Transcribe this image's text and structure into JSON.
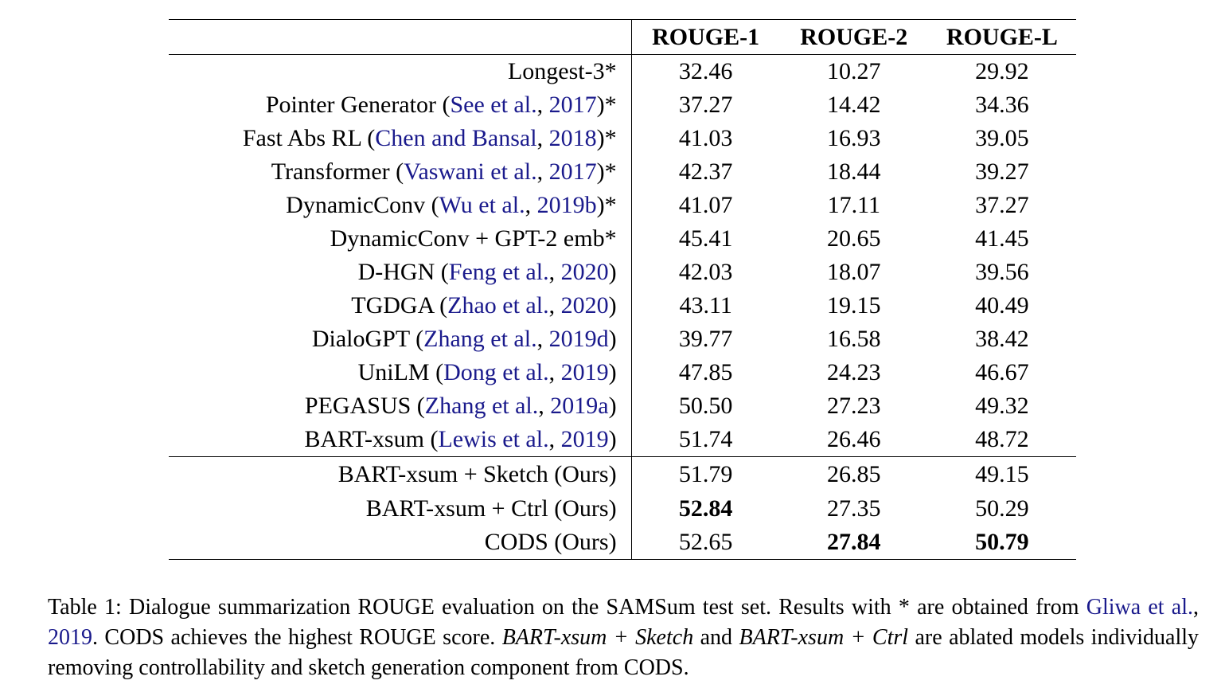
{
  "table": {
    "headers": [
      "",
      "ROUGE-1",
      "ROUGE-2",
      "ROUGE-L"
    ],
    "rows": [
      {
        "name": "Longest-3*",
        "cite": "",
        "pre": "",
        "post": "",
        "r1": "32.46",
        "r2": "10.27",
        "rl": "29.92"
      },
      {
        "name": "Pointer Generator",
        "pre": " (",
        "cite_a": "See et al.",
        "sep": ", ",
        "cite_b": "2017",
        "post": ")*",
        "r1": "37.27",
        "r2": "14.42",
        "rl": "34.36"
      },
      {
        "name": "Fast Abs RL",
        "pre": " (",
        "cite_a": "Chen and Bansal",
        "sep": ", ",
        "cite_b": "2018",
        "post": ")*",
        "r1": "41.03",
        "r2": "16.93",
        "rl": "39.05"
      },
      {
        "name": "Transformer",
        "pre": " (",
        "cite_a": "Vaswani et al.",
        "sep": ", ",
        "cite_b": "2017",
        "post": ")*",
        "r1": "42.37",
        "r2": "18.44",
        "rl": "39.27"
      },
      {
        "name": "DynamicConv",
        "pre": " (",
        "cite_a": "Wu et al.",
        "sep": ", ",
        "cite_b": "2019b",
        "post": ")*",
        "r1": "41.07",
        "r2": "17.11",
        "rl": "37.27"
      },
      {
        "name": "DynamicConv + GPT-2 emb*",
        "pre": "",
        "post": "",
        "r1": "45.41",
        "r2": "20.65",
        "rl": "41.45"
      },
      {
        "name": "D-HGN",
        "pre": " (",
        "cite_a": "Feng et al.",
        "sep": ", ",
        "cite_b": "2020",
        "post": ")",
        "r1": "42.03",
        "r2": "18.07",
        "rl": "39.56"
      },
      {
        "name": "TGDGA",
        "pre": " (",
        "cite_a": "Zhao et al.",
        "sep": ", ",
        "cite_b": "2020",
        "post": ")",
        "r1": "43.11",
        "r2": "19.15",
        "rl": "40.49"
      },
      {
        "name": "DialoGPT",
        "pre": " (",
        "cite_a": "Zhang et al.",
        "sep": ", ",
        "cite_b": "2019d",
        "post": ")",
        "r1": "39.77",
        "r2": "16.58",
        "rl": "38.42"
      },
      {
        "name": "UniLM",
        "pre": " (",
        "cite_a": "Dong et al.",
        "sep": ", ",
        "cite_b": "2019",
        "post": ")",
        "r1": "47.85",
        "r2": "24.23",
        "rl": "46.67"
      },
      {
        "name": "PEGASUS",
        "pre": " (",
        "cite_a": "Zhang et al.",
        "sep": ", ",
        "cite_b": "2019a",
        "post": ")",
        "r1": "50.50",
        "r2": "27.23",
        "rl": "49.32"
      },
      {
        "name": "BART-xsum",
        "pre": " (",
        "cite_a": "Lewis et al.",
        "sep": ", ",
        "cite_b": "2019",
        "post": ")",
        "r1": "51.74",
        "r2": "26.46",
        "rl": "48.72"
      }
    ],
    "ours": [
      {
        "name": "BART-xsum + Sketch (Ours)",
        "r1": "51.79",
        "r2": "26.85",
        "rl": "49.15"
      },
      {
        "name": "BART-xsum + Ctrl (Ours)",
        "r1": "52.84",
        "r2": "27.35",
        "rl": "50.29"
      },
      {
        "name": "CODS (Ours)",
        "r1": "52.65",
        "r2": "27.84",
        "rl": "50.79"
      }
    ]
  },
  "caption": {
    "part1": "Table 1: Dialogue summarization ROUGE evaluation on the SAMSum test set. Results with * are obtained from ",
    "cite_a": "Gliwa et al.",
    "sep": ", ",
    "cite_b": "2019",
    "part2": ". CODS achieves the highest ROUGE score. ",
    "em1": "BART-xsum + Sketch",
    "and": " and ",
    "em2": "BART-xsum + Ctrl",
    "part3": " are ablated models individually removing controllability and sketch generation component from CODS."
  }
}
